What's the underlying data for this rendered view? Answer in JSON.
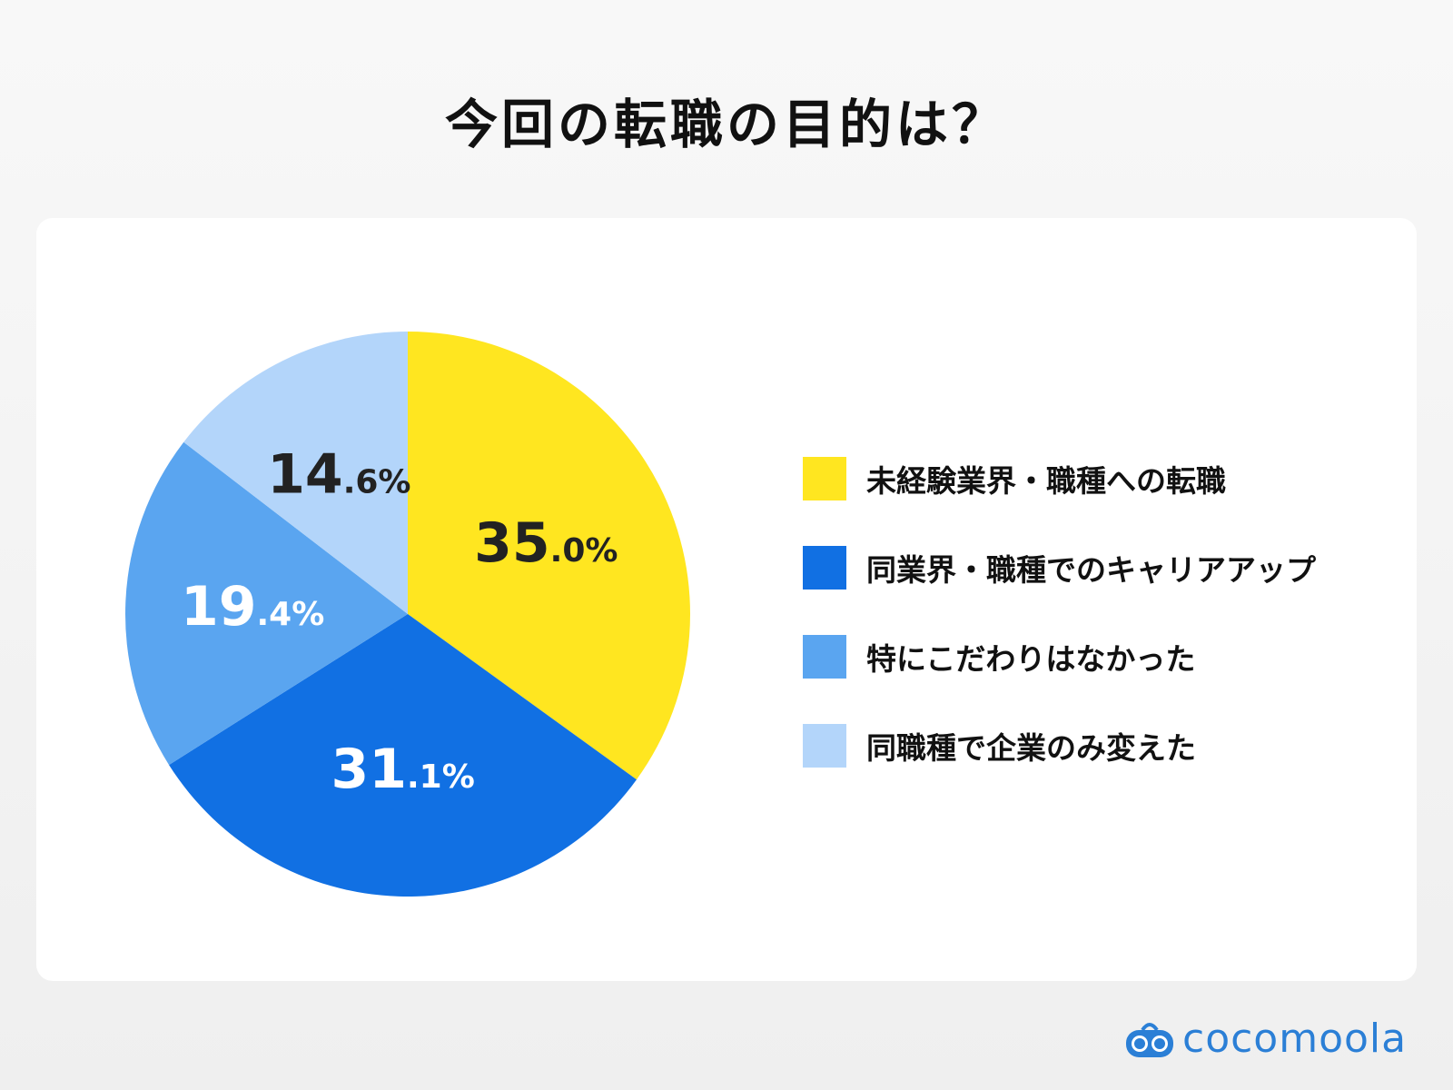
{
  "chart_data": {
    "type": "pie",
    "title": "今回の転職の目的は？",
    "start_angle": "12 o'clock",
    "direction": "clockwise",
    "legend_position": "right",
    "slices": [
      {
        "label": "未経験業界・職種への転職",
        "value": 35.0,
        "int": "35",
        "dec": ".0%",
        "color": "#FFE620",
        "text_color": "#222222"
      },
      {
        "label": "同業界・職種でのキャリアアップ",
        "value": 31.1,
        "int": "31",
        "dec": ".1%",
        "color": "#1170E3",
        "text_color": "#ffffff"
      },
      {
        "label": "特にこだわりはなかった",
        "value": 19.4,
        "int": "19",
        "dec": ".4%",
        "color": "#5AA5F0",
        "text_color": "#ffffff"
      },
      {
        "label": "同職種で企業のみ変えた",
        "value": 14.6,
        "int": "14",
        "dec": ".6%",
        "color": "#B3D5FA",
        "text_color": "#222222"
      }
    ]
  },
  "brand": {
    "name": "cocomoola",
    "color": "#2b7fd6"
  }
}
